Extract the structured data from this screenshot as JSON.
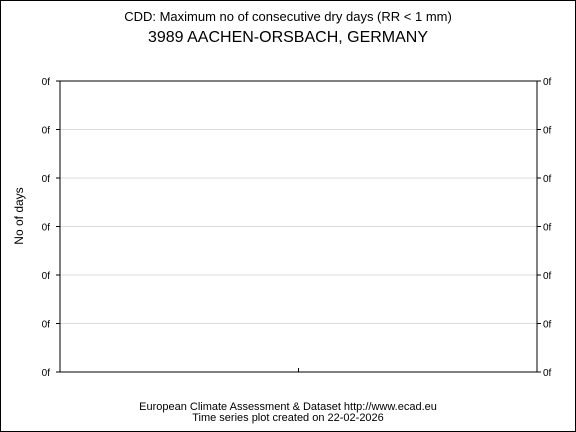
{
  "chart_data": {
    "type": "line",
    "title": "CDD: Maximum no of consecutive dry days (RR < 1 mm)",
    "subtitle": "3989 AACHEN-ORSBACH, GERMANY",
    "ylabel": "No of days",
    "xlabel": "",
    "y_tick_labels": [
      "0f",
      "0f",
      "0f",
      "0f",
      "0f",
      "0f",
      "0f"
    ],
    "x_tick_labels": [],
    "x_ticks": 1,
    "series": [],
    "grid": true,
    "footer": {
      "line1": "European Climate Assessment & Dataset  http://www.ecad.eu",
      "line2": "Time series plot created on 22-02-2026"
    }
  }
}
